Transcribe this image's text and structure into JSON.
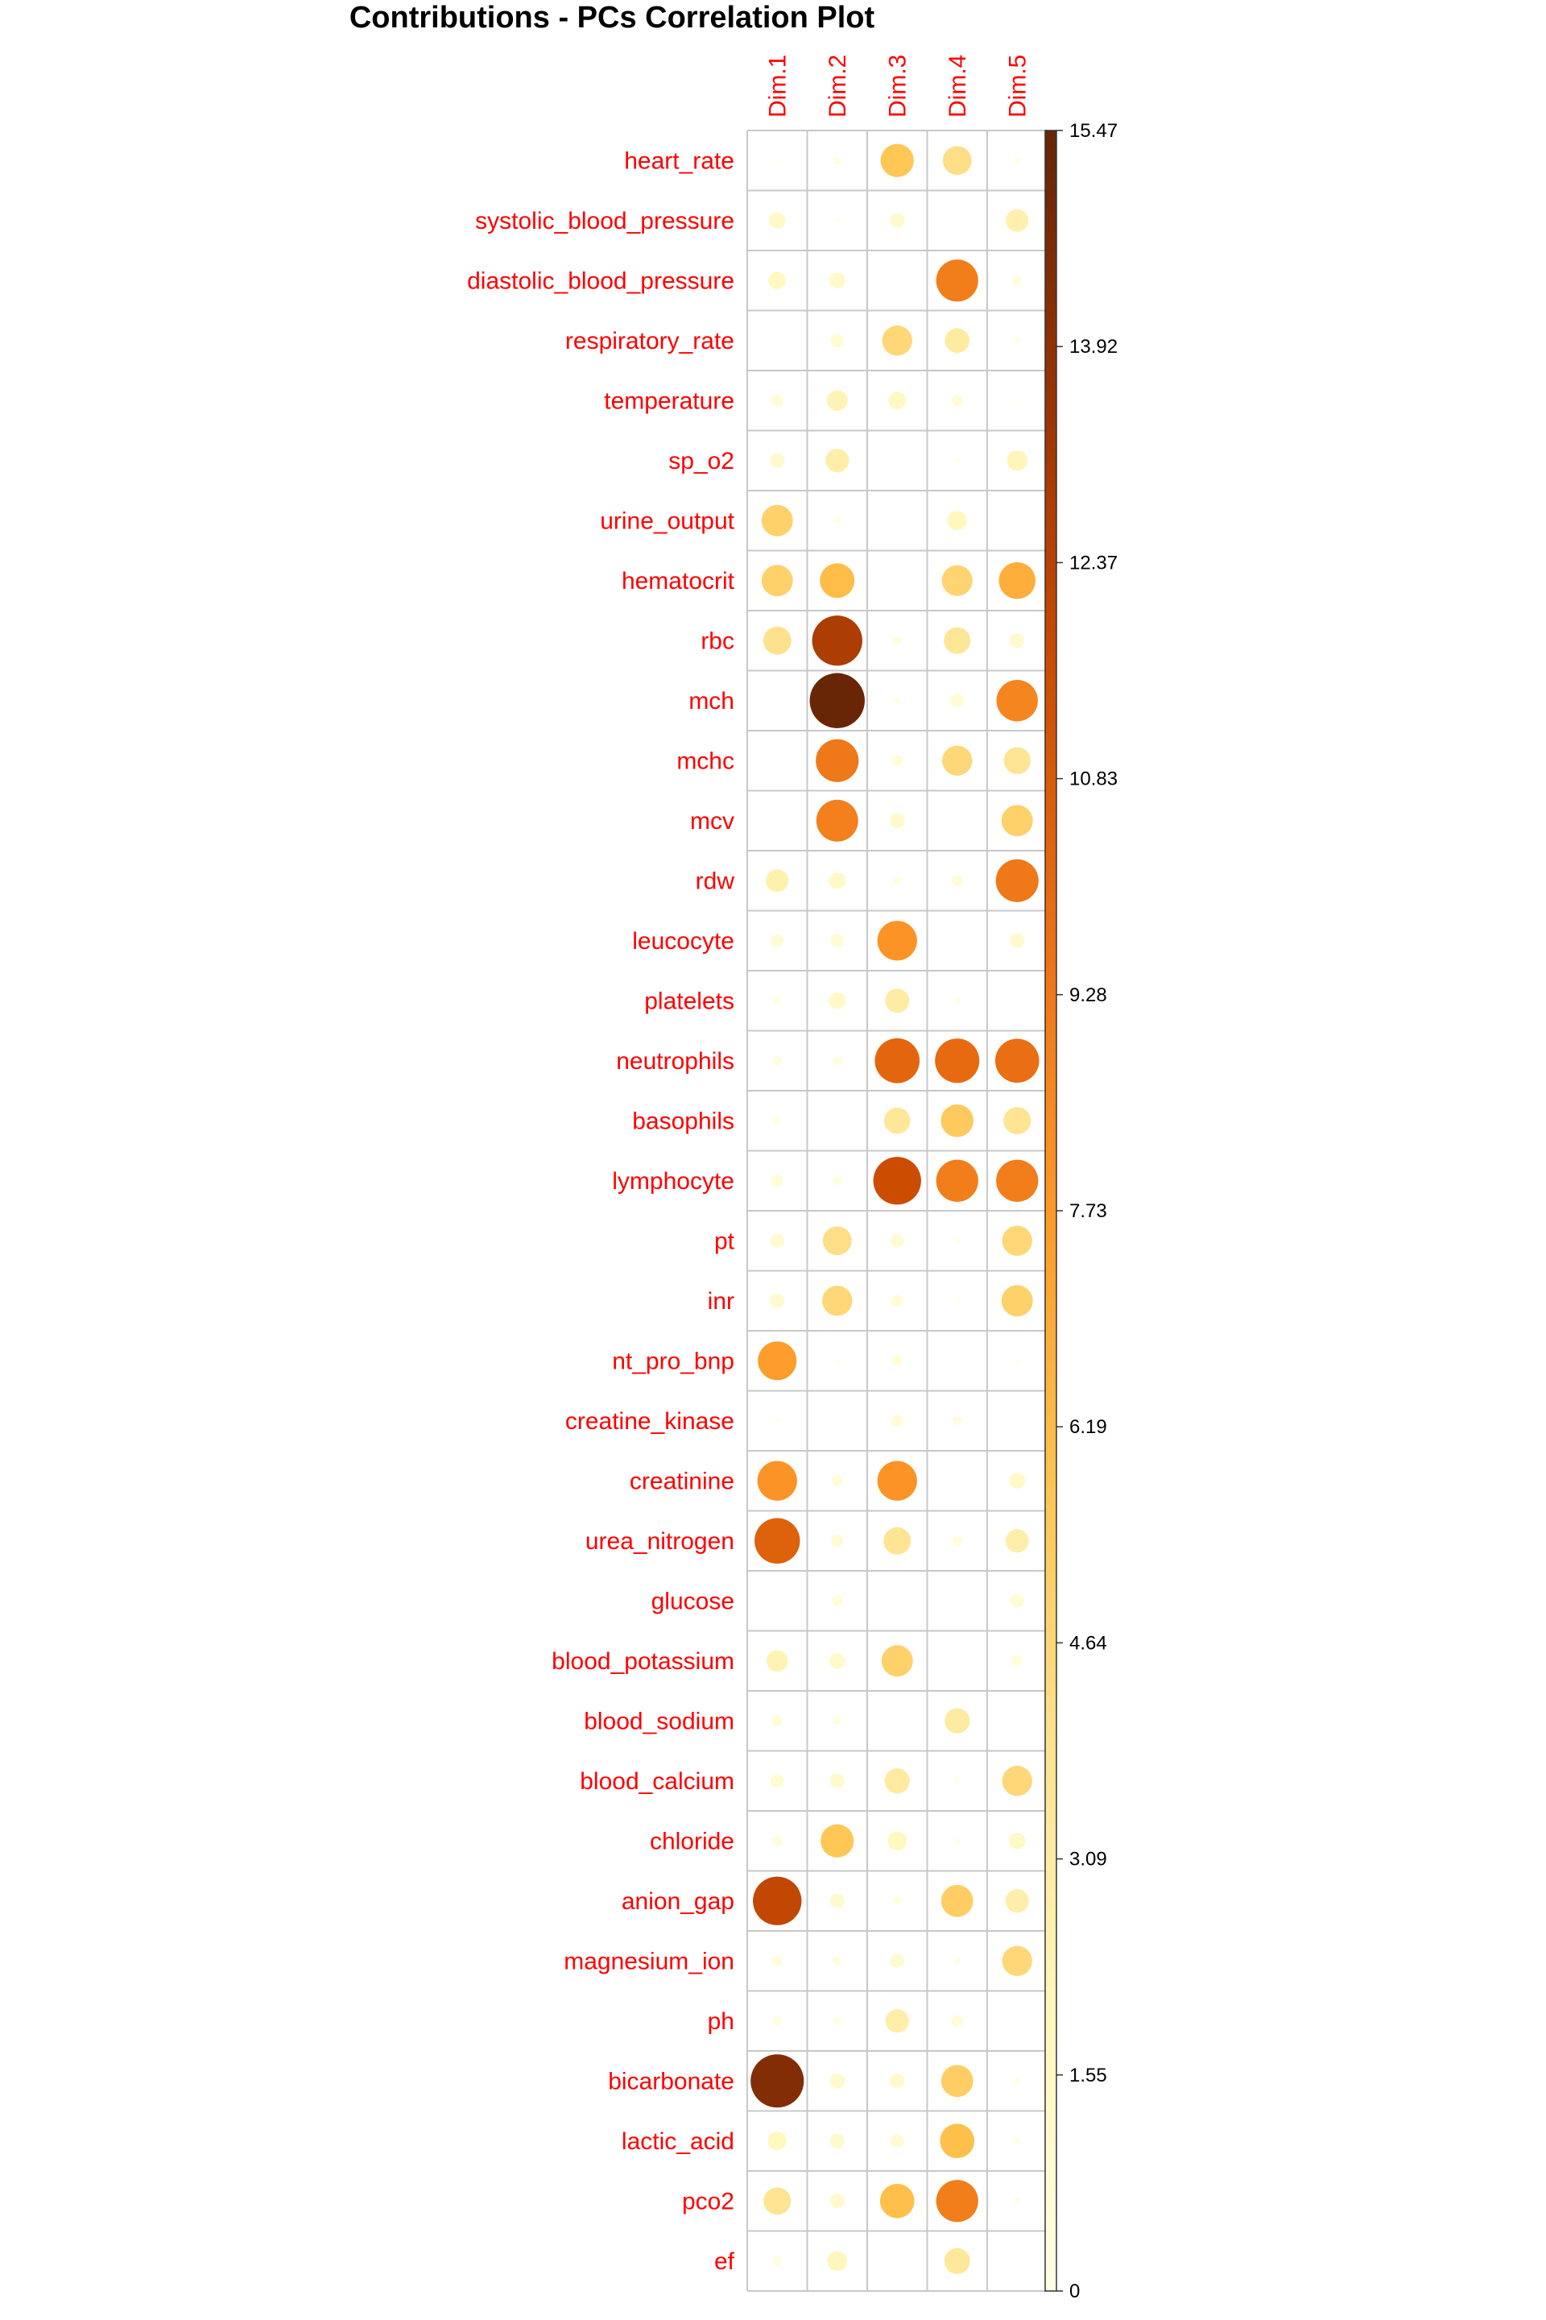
{
  "chart_data": {
    "type": "heatmap",
    "title": "Contributions - PCs Correlation Plot",
    "columns": [
      "Dim.1",
      "Dim.2",
      "Dim.3",
      "Dim.4",
      "Dim.5"
    ],
    "rows": [
      "heart_rate",
      "systolic_blood_pressure",
      "diastolic_blood_pressure",
      "respiratory_rate",
      "temperature",
      "sp_o2",
      "urine_output",
      "hematocrit",
      "rbc",
      "mch",
      "mchc",
      "mcv",
      "rdw",
      "leucocyte",
      "platelets",
      "neutrophils",
      "basophils",
      "lymphocyte",
      "pt",
      "inr",
      "nt_pro_bnp",
      "creatine_kinase",
      "creatinine",
      "urea_nitrogen",
      "glucose",
      "blood_potassium",
      "blood_sodium",
      "blood_calcium",
      "chloride",
      "anion_gap",
      "magnesium_ion",
      "ph",
      "bicarbonate",
      "lactic_acid",
      "pco2",
      "ef"
    ],
    "values": [
      [
        0.1,
        0.3,
        5.6,
        4.2,
        0.2
      ],
      [
        1.4,
        0.1,
        1.1,
        0.0,
        2.6
      ],
      [
        1.6,
        1.3,
        0.0,
        9.0,
        0.5
      ],
      [
        0.0,
        0.9,
        4.6,
        3.1,
        0.2
      ],
      [
        0.7,
        2.2,
        1.6,
        0.6,
        0.1
      ],
      [
        1.1,
        2.8,
        0.0,
        0.1,
        2.1
      ],
      [
        5.0,
        0.2,
        0.0,
        1.9,
        0.0
      ],
      [
        5.0,
        6.1,
        0.0,
        4.8,
        6.8
      ],
      [
        4.0,
        12.8,
        0.4,
        3.6,
        1.1
      ],
      [
        0.0,
        15.4,
        0.2,
        0.9,
        8.7
      ],
      [
        0.0,
        9.3,
        0.6,
        4.6,
        3.7
      ],
      [
        0.0,
        8.9,
        1.2,
        0.0,
        5.0
      ],
      [
        2.6,
        1.4,
        0.3,
        0.6,
        9.3
      ],
      [
        0.8,
        0.9,
        8.0,
        0.0,
        1.1
      ],
      [
        0.3,
        1.4,
        3.0,
        0.2,
        0.0
      ],
      [
        0.4,
        0.4,
        10.2,
        10.0,
        9.8
      ],
      [
        0.3,
        0.0,
        3.5,
        5.4,
        3.8
      ],
      [
        0.7,
        0.4,
        11.6,
        9.0,
        9.0
      ],
      [
        1.0,
        4.2,
        0.9,
        0.1,
        4.6
      ],
      [
        1.1,
        4.6,
        0.7,
        0.1,
        5.0
      ],
      [
        7.6,
        0.1,
        0.6,
        0.0,
        0.1
      ],
      [
        0.1,
        0.0,
        0.7,
        0.4,
        0.0
      ],
      [
        8.0,
        0.6,
        8.0,
        0.0,
        1.3
      ],
      [
        10.5,
        0.8,
        3.8,
        0.5,
        2.8
      ],
      [
        0.0,
        0.6,
        0.0,
        0.0,
        0.9
      ],
      [
        2.3,
        1.3,
        5.0,
        0.0,
        0.6
      ],
      [
        0.6,
        0.3,
        0.0,
        3.2,
        0.0
      ],
      [
        0.9,
        1.1,
        3.2,
        0.2,
        4.6
      ],
      [
        0.5,
        5.6,
        1.8,
        0.1,
        1.4
      ],
      [
        12.0,
        1.1,
        0.3,
        5.2,
        2.8
      ],
      [
        0.5,
        0.4,
        1.0,
        0.2,
        4.6
      ],
      [
        0.4,
        0.3,
        2.8,
        0.7,
        0.0
      ],
      [
        14.4,
        1.2,
        1.1,
        5.2,
        0.2
      ],
      [
        1.8,
        1.1,
        0.9,
        6.0,
        0.2
      ],
      [
        3.8,
        1.1,
        6.0,
        9.0,
        0.2
      ],
      [
        0.4,
        2.0,
        0.0,
        3.4,
        0.0
      ]
    ],
    "colorbar": {
      "ticks": [
        "0",
        "1.55",
        "3.09",
        "4.64",
        "6.19",
        "7.73",
        "9.28",
        "10.83",
        "12.37",
        "13.92",
        "15.47"
      ],
      "min": 0,
      "max": 15.47,
      "colors": [
        "#ffffe5",
        "#fff7bc",
        "#fee391",
        "#fec44f",
        "#fe9929",
        "#ec7014",
        "#cc4c02",
        "#993404",
        "#662506"
      ]
    },
    "grid": true,
    "legend_position": "right"
  }
}
